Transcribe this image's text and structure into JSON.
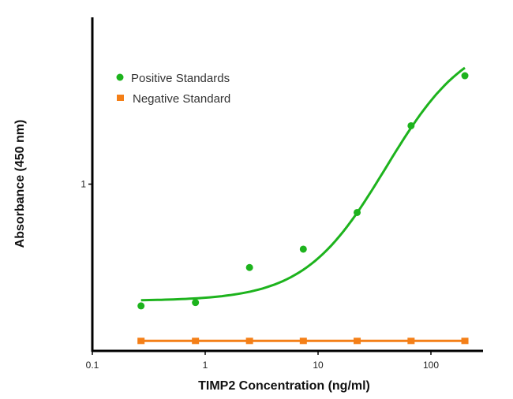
{
  "chart_data": {
    "type": "scatter",
    "title": "",
    "xlabel": "TIMP2 Concentration (ng/ml)",
    "ylabel": "Absorbance (450 nm)",
    "xscale": "log",
    "xlim": [
      0.1,
      300
    ],
    "ylim": [
      0,
      2
    ],
    "x_ticks": [
      {
        "value": 0.1,
        "label": "0.1"
      },
      {
        "value": 1,
        "label": "1"
      },
      {
        "value": 10,
        "label": "10"
      },
      {
        "value": 100,
        "label": "100"
      }
    ],
    "y_ticks": [
      {
        "value": 1,
        "label": "1"
      }
    ],
    "grid": false,
    "legend_position": "top-left",
    "series": [
      {
        "name": "Positive Standards",
        "color": "#1db31d",
        "marker": "circle",
        "x": [
          0.27,
          0.82,
          2.47,
          7.4,
          22.2,
          66.7,
          200
        ],
        "y": [
          0.27,
          0.29,
          0.5,
          0.61,
          0.83,
          1.35,
          1.65
        ],
        "fit": {
          "model": "4PL",
          "bottom": 0.3,
          "top": 1.9,
          "ec50": 40,
          "hill": 1.2
        }
      },
      {
        "name": "Negative Standard",
        "color": "#f47f17",
        "marker": "square",
        "x": [
          0.27,
          0.82,
          2.47,
          7.4,
          22.2,
          66.7,
          200
        ],
        "y": [
          0.06,
          0.06,
          0.06,
          0.06,
          0.06,
          0.06,
          0.06
        ]
      }
    ]
  }
}
